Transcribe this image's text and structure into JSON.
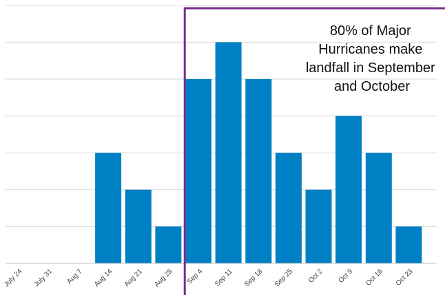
{
  "chart_data": {
    "type": "bar",
    "categories": [
      "July 24",
      "July 31",
      "Aug 7",
      "Aug 14",
      "Aug 21",
      "Aug 28",
      "Sep 4",
      "Sep 11",
      "Sep 18",
      "Sep 25",
      "Oct 2",
      "Oct 9",
      "Oct 16",
      "Oct 23"
    ],
    "values": [
      0,
      0,
      0,
      3,
      2,
      1,
      5,
      6,
      5,
      3,
      2,
      4,
      3,
      1
    ],
    "ylim": [
      0,
      7
    ],
    "grid": true,
    "bar_color": "#0080C4",
    "annotation": {
      "lines": [
        "80% of Major",
        "Hurricanes make",
        "landfall in September",
        "and October"
      ],
      "box_color": "#7B2C8E",
      "box_starts_at_category": "Sep 4"
    }
  }
}
